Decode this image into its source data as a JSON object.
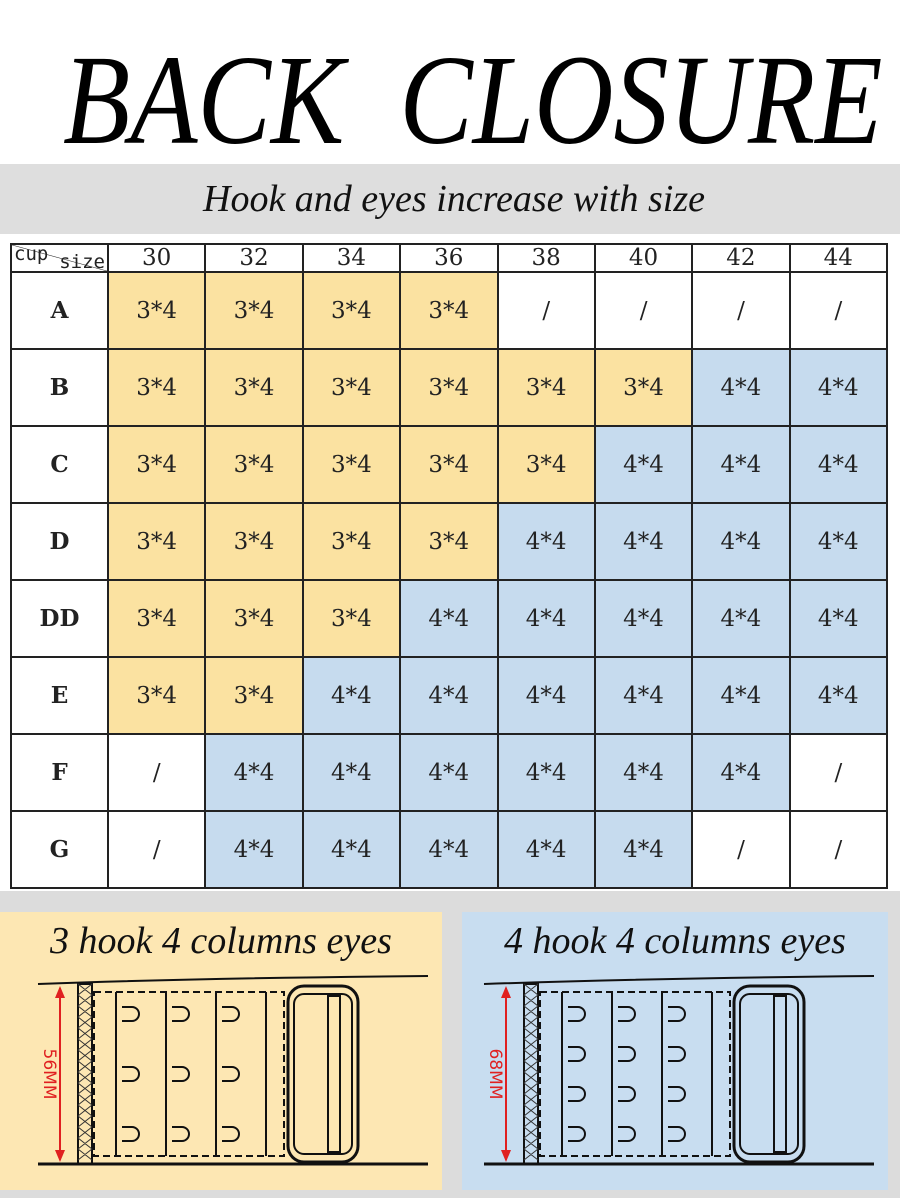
{
  "title": "BACK  CLOSURE",
  "subtitle": "Hook and eyes increase with size",
  "table": {
    "corner_size": "size",
    "corner_cup": "cup",
    "columns": [
      "30",
      "32",
      "34",
      "36",
      "38",
      "40",
      "42",
      "44"
    ],
    "rows": [
      {
        "cup": "A",
        "cells": [
          "3*4",
          "3*4",
          "3*4",
          "3*4",
          "/",
          "/",
          "/",
          "/"
        ]
      },
      {
        "cup": "B",
        "cells": [
          "3*4",
          "3*4",
          "3*4",
          "3*4",
          "3*4",
          "3*4",
          "4*4",
          "4*4"
        ]
      },
      {
        "cup": "C",
        "cells": [
          "3*4",
          "3*4",
          "3*4",
          "3*4",
          "3*4",
          "4*4",
          "4*4",
          "4*4"
        ]
      },
      {
        "cup": "D",
        "cells": [
          "3*4",
          "3*4",
          "3*4",
          "3*4",
          "4*4",
          "4*4",
          "4*4",
          "4*4"
        ]
      },
      {
        "cup": "DD",
        "cells": [
          "3*4",
          "3*4",
          "3*4",
          "4*4",
          "4*4",
          "4*4",
          "4*4",
          "4*4"
        ]
      },
      {
        "cup": "E",
        "cells": [
          "3*4",
          "3*4",
          "4*4",
          "4*4",
          "4*4",
          "4*4",
          "4*4",
          "4*4"
        ]
      },
      {
        "cup": "F",
        "cells": [
          "/",
          "4*4",
          "4*4",
          "4*4",
          "4*4",
          "4*4",
          "4*4",
          "/"
        ]
      },
      {
        "cup": "G",
        "cells": [
          "/",
          "4*4",
          "4*4",
          "4*4",
          "4*4",
          "4*4",
          "/",
          "/"
        ]
      }
    ]
  },
  "colors": {
    "three_hook": "#fbe2a1",
    "four_hook": "#c6dbee",
    "measure": "#e02020"
  },
  "panels": [
    {
      "title": "3 hook 4 columns eyes",
      "measure": "56MM",
      "hooks": 3
    },
    {
      "title": "4 hook 4 columns eyes",
      "measure": "68MM",
      "hooks": 4
    }
  ]
}
